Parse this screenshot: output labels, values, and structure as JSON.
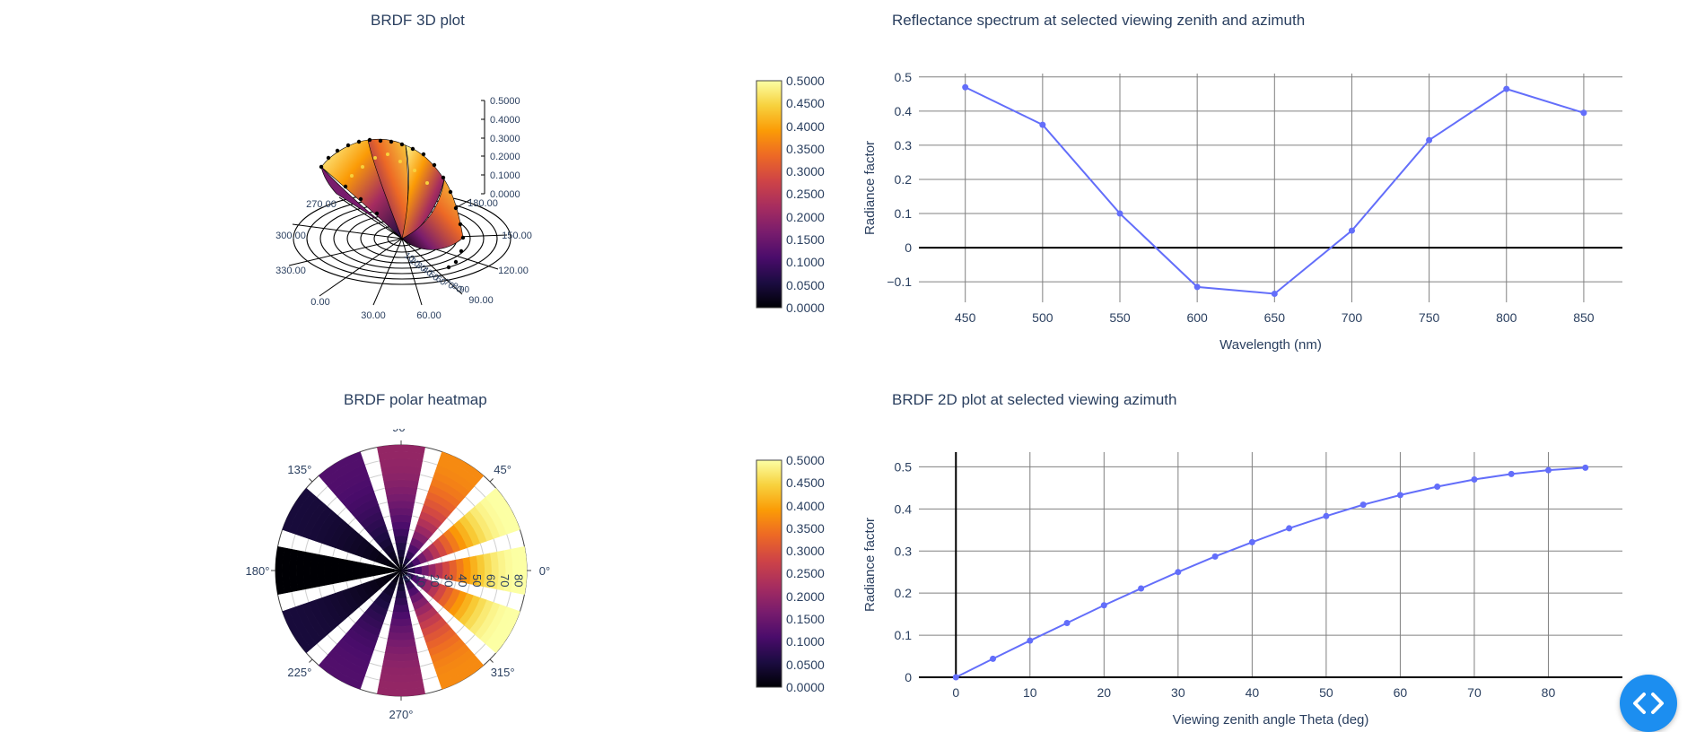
{
  "panels": {
    "brdf3d_title": "BRDF 3D plot",
    "polar_title": "BRDF polar heatmap",
    "spectrum_title": "Reflectance spectrum at selected viewing zenith and azimuth",
    "brdf2d_title": "BRDF 2D plot at selected viewing azimuth"
  },
  "colors": {
    "line": "#636efa",
    "grid": "#808080",
    "text": "#2a3f5f",
    "accent_button": "#1c8ef0",
    "inferno": [
      "#000004",
      "#1b0c41",
      "#4a0c6b",
      "#781c6d",
      "#a52c60",
      "#cf4446",
      "#ed6925",
      "#fb9b06",
      "#f7d13d",
      "#fcffa4"
    ]
  },
  "colorbar": {
    "ticks": [
      "0.0000",
      "0.0500",
      "0.1000",
      "0.1500",
      "0.2000",
      "0.2500",
      "0.3000",
      "0.3500",
      "0.4000",
      "0.4500",
      "0.5000"
    ]
  },
  "brdf3d": {
    "z_ticks": [
      "0.0000",
      "0.1000",
      "0.2000",
      "0.3000",
      "0.4000",
      "0.5000"
    ],
    "azimuth_labels": [
      "0.00",
      "30.00",
      "60.00",
      "90.00",
      "120.00",
      "150.00",
      "180.00",
      "270.00",
      "300.00",
      "330.00"
    ],
    "radial_labels": [
      "10",
      "20",
      "30",
      "40",
      "50",
      "60",
      "70",
      "80",
      "90"
    ]
  },
  "polar": {
    "angular_labels": [
      "0°",
      "45°",
      "90°",
      "135°",
      "180°",
      "225°",
      "270°",
      "315°"
    ],
    "radial_labels": [
      "0",
      "10",
      "20",
      "30",
      "40",
      "50",
      "60",
      "70",
      "80"
    ]
  },
  "chart_data": [
    {
      "type": "surface",
      "title": "BRDF 3D plot",
      "zlim": [
        0,
        0.5
      ],
      "colorscale": "inferno",
      "cmin": 0,
      "cmax": 0.5
    },
    {
      "type": "heatmap",
      "title": "BRDF polar heatmap",
      "projection": "polar",
      "azimuth_deg": [
        0,
        30,
        60,
        90,
        120,
        150,
        180,
        210,
        240,
        270,
        300,
        330
      ],
      "zenith_deg": [
        0,
        5,
        10,
        15,
        20,
        25,
        30,
        35,
        40,
        45,
        50,
        55,
        60,
        65,
        70,
        75,
        80,
        85
      ],
      "max_reflectance_by_azimuth": [
        0.5,
        0.5,
        0.37,
        0.2,
        0.12,
        0.05,
        0.0,
        0.05,
        0.12,
        0.2,
        0.37,
        0.5
      ],
      "colorscale": "inferno",
      "cmin": 0,
      "cmax": 0.5
    },
    {
      "type": "line",
      "title": "Reflectance spectrum at selected viewing zenith and azimuth",
      "xlabel": "Wavelength (nm)",
      "ylabel": "Radiance factor",
      "x": [
        450,
        500,
        550,
        600,
        650,
        700,
        750,
        800,
        850
      ],
      "y": [
        0.47,
        0.36,
        0.1,
        -0.115,
        -0.135,
        0.05,
        0.315,
        0.465,
        0.395
      ],
      "xlim": [
        420,
        875
      ],
      "ylim": [
        -0.16,
        0.51
      ],
      "xticks": [
        450,
        500,
        550,
        600,
        650,
        700,
        750,
        800,
        850
      ],
      "yticks": [
        -0.1,
        0,
        0.1,
        0.2,
        0.3,
        0.4,
        0.5
      ],
      "ytick_labels": [
        "−0.1",
        "0",
        "0.1",
        "0.2",
        "0.3",
        "0.4",
        "0.5"
      ],
      "grid": true
    },
    {
      "type": "line",
      "title": "BRDF 2D plot at selected viewing azimuth",
      "xlabel": "Viewing zenith angle Theta (deg)",
      "ylabel": "Radiance factor",
      "x": [
        0,
        5,
        10,
        15,
        20,
        25,
        30,
        35,
        40,
        45,
        50,
        55,
        60,
        65,
        70,
        75,
        80,
        85
      ],
      "y": [
        0,
        0.044,
        0.087,
        0.129,
        0.171,
        0.211,
        0.25,
        0.287,
        0.321,
        0.354,
        0.383,
        0.41,
        0.433,
        0.453,
        0.47,
        0.483,
        0.492,
        0.498
      ],
      "xlim": [
        -5,
        90
      ],
      "ylim": [
        0,
        0.535
      ],
      "xticks": [
        0,
        10,
        20,
        30,
        40,
        50,
        60,
        70,
        80
      ],
      "yticks": [
        0,
        0.1,
        0.2,
        0.3,
        0.4,
        0.5
      ],
      "ytick_labels": [
        "0",
        "0.1",
        "0.2",
        "0.3",
        "0.4",
        "0.5"
      ],
      "grid": true
    }
  ]
}
